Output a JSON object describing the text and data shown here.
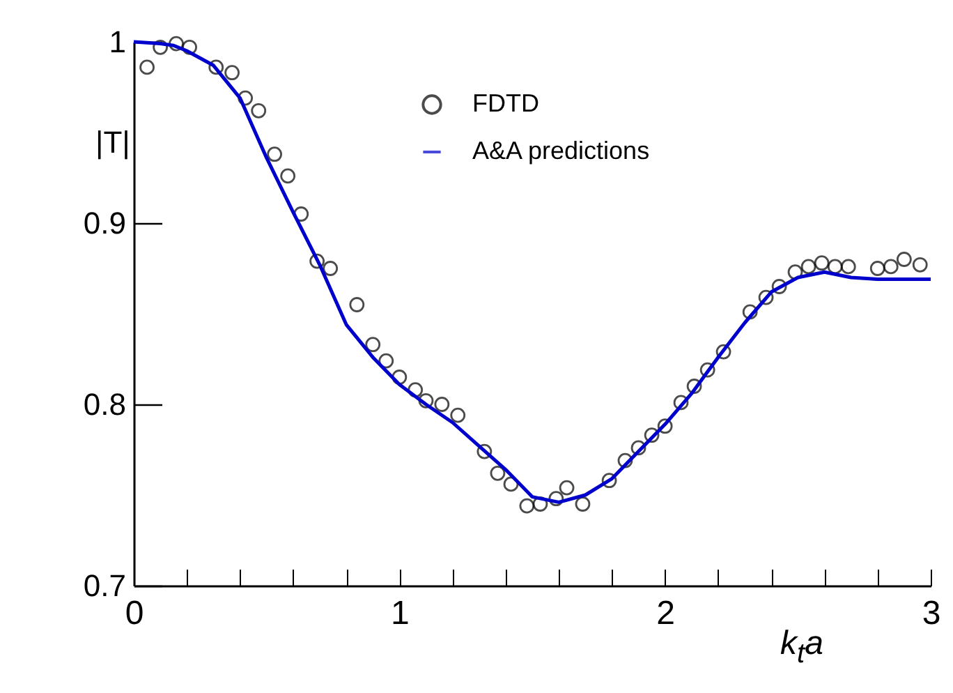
{
  "chart_data": {
    "type": "scatter",
    "xlabel": "k$_{t}$a",
    "ylabel": "|T|",
    "xlim": [
      0,
      3
    ],
    "ylim": [
      0.7,
      1
    ],
    "xticks": [
      0,
      {
        "value": 0.2,
        "label": null
      },
      {
        "value": 0.4,
        "label": null
      },
      {
        "value": 0.6,
        "label": null
      },
      {
        "value": 0.8,
        "label": null
      },
      1,
      {
        "value": 1.2,
        "label": null
      },
      {
        "value": 1.4,
        "label": null
      },
      {
        "value": 1.6,
        "label": null
      },
      {
        "value": 1.8,
        "label": null
      },
      2,
      {
        "value": 2.2,
        "label": null
      },
      {
        "value": 2.4,
        "label": null
      },
      {
        "value": 2.6,
        "label": null
      },
      {
        "value": 2.8,
        "label": null
      },
      3
    ],
    "yticks": [
      0.7,
      0.8,
      0.9,
      1
    ],
    "grid": false,
    "legend": "top right",
    "series": [
      {
        "name": "FDTD",
        "marker": "circle",
        "color": "#000000",
        "x": [
          0.05,
          0.1,
          0.16,
          0.21,
          0.31,
          0.37,
          0.42,
          0.47,
          0.53,
          0.58,
          0.63,
          0.69,
          0.74,
          0.84,
          0.9,
          0.95,
          1.0,
          1.06,
          1.1,
          1.16,
          1.22,
          1.32,
          1.37,
          1.42,
          1.48,
          1.53,
          1.59,
          1.63,
          1.69,
          1.79,
          1.85,
          1.9,
          1.95,
          2.0,
          2.06,
          2.11,
          2.16,
          2.22,
          2.32,
          2.38,
          2.43,
          2.49,
          2.54,
          2.59,
          2.64,
          2.69,
          2.8,
          2.85,
          2.9,
          2.96
        ],
        "values": [
          0.986,
          0.997,
          0.999,
          0.997,
          0.986,
          0.983,
          0.969,
          0.962,
          0.938,
          0.926,
          0.905,
          0.879,
          0.875,
          0.855,
          0.833,
          0.824,
          0.815,
          0.808,
          0.802,
          0.8,
          0.794,
          0.774,
          0.762,
          0.756,
          0.744,
          0.745,
          0.748,
          0.754,
          0.745,
          0.758,
          0.769,
          0.776,
          0.783,
          0.788,
          0.801,
          0.81,
          0.819,
          0.829,
          0.851,
          0.859,
          0.865,
          0.873,
          0.876,
          0.878,
          0.876,
          0.876,
          0.875,
          0.876,
          0.88,
          0.877
        ]
      },
      {
        "name": "A&A predictions",
        "type": "line",
        "marker": "none",
        "line_style": "solid",
        "color": "#0000cc",
        "x": [
          0,
          0.1,
          0.15,
          0.2,
          0.3,
          0.4,
          0.5,
          0.6,
          0.7,
          0.8,
          0.9,
          1.0,
          1.1,
          1.2,
          1.3,
          1.4,
          1.5,
          1.6,
          1.7,
          1.8,
          1.9,
          2.0,
          2.1,
          2.2,
          2.3,
          2.4,
          2.5,
          2.6,
          2.7,
          2.8,
          2.9,
          3.0
        ],
        "values": [
          1.0,
          0.999,
          0.998,
          0.995,
          0.987,
          0.969,
          0.936,
          0.906,
          0.877,
          0.844,
          0.826,
          0.811,
          0.8,
          0.79,
          0.777,
          0.764,
          0.749,
          0.746,
          0.75,
          0.759,
          0.774,
          0.789,
          0.806,
          0.826,
          0.845,
          0.862,
          0.87,
          0.873,
          0.87,
          0.869,
          0.869,
          0.869
        ]
      }
    ]
  }
}
